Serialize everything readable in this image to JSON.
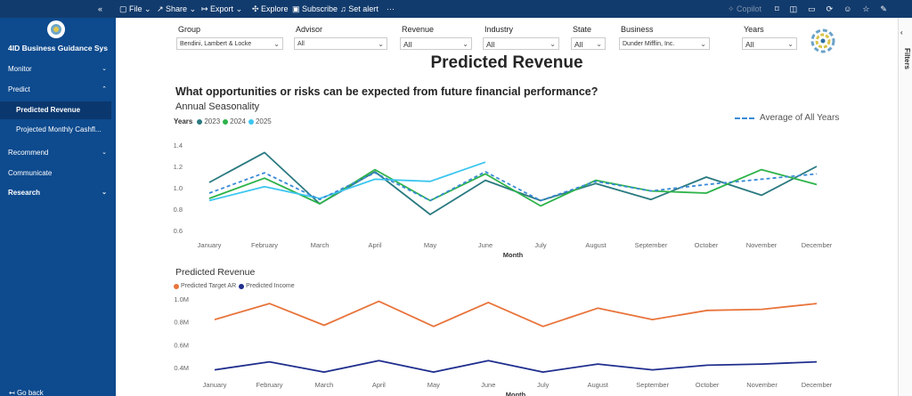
{
  "toolbar": {
    "items": [
      "File",
      "Share",
      "Export",
      "Explore",
      "Subscribe",
      "Set alert"
    ],
    "copilot": "Copilot"
  },
  "sidebar": {
    "app_name": "4ID Business Guidance Sys",
    "nav": [
      {
        "label": "Monitor"
      },
      {
        "label": "Predict"
      },
      {
        "label": "Predicted Revenue"
      },
      {
        "label": "Projected Monthly Cashfl..."
      },
      {
        "label": "Recommend"
      },
      {
        "label": "Communicate"
      },
      {
        "label": "Research"
      }
    ],
    "footer": "Go back"
  },
  "filters": [
    {
      "label": "Group",
      "value": "Bendini, Lambert & Locke"
    },
    {
      "label": "Advisor",
      "value": "All"
    },
    {
      "label": "Revenue",
      "value": "All"
    },
    {
      "label": "Industry",
      "value": "All"
    },
    {
      "label": "State",
      "value": "All"
    },
    {
      "label": "Business",
      "value": "Dunder Mifflin, Inc."
    },
    {
      "label": "Years",
      "value": "All"
    }
  ],
  "filters_pane": "Filters",
  "page": {
    "title": "Predicted Revenue",
    "question": "What opportunities or risks can be expected from future financial performance?"
  },
  "chart_data": [
    {
      "type": "line",
      "title": "Annual Seasonality",
      "legend_title": "Years",
      "x_label": "Month",
      "categories": [
        "January",
        "February",
        "March",
        "April",
        "May",
        "June",
        "July",
        "August",
        "September",
        "October",
        "November",
        "December"
      ],
      "series": [
        {
          "name": "2023",
          "color": "#2a7a80",
          "values": [
            1.05,
            1.33,
            0.85,
            1.15,
            0.75,
            1.07,
            0.88,
            1.04,
            0.89,
            1.1,
            0.93,
            1.2
          ]
        },
        {
          "name": "2024",
          "color": "#2db34a",
          "values": [
            0.9,
            1.09,
            0.85,
            1.17,
            0.88,
            1.13,
            0.83,
            1.07,
            0.97,
            0.95,
            1.17,
            1.03
          ]
        },
        {
          "name": "2025",
          "color": "#3cc6ef",
          "values": [
            0.88,
            1.01,
            0.9,
            1.08,
            1.06,
            1.24,
            null,
            null,
            null,
            null,
            null,
            null
          ]
        },
        {
          "name": "Average of All Years",
          "color": "#3a8ad6",
          "dashed": true,
          "values": [
            0.95,
            1.14,
            0.89,
            1.14,
            0.88,
            1.15,
            0.88,
            1.06,
            0.97,
            1.03,
            1.08,
            1.13
          ]
        }
      ],
      "ylim": [
        0.6,
        1.4
      ],
      "yticks": [
        0.6,
        0.8,
        {
          "value": 1,
          "label": "1.0"
        },
        1.2,
        1.4
      ],
      "grid": false
    },
    {
      "type": "line",
      "title": "Predicted Revenue",
      "x_label": "Month",
      "categories": [
        "January",
        "February",
        "March",
        "April",
        "May",
        "June",
        "July",
        "August",
        "September",
        "October",
        "November",
        "December"
      ],
      "series": [
        {
          "name": "Predicted Target AR",
          "color": "#e8743b",
          "values": [
            820000,
            960000,
            770000,
            980000,
            760000,
            970000,
            760000,
            920000,
            820000,
            900000,
            910000,
            960000
          ]
        },
        {
          "name": "Predicted Income",
          "color": "#1f2e8e",
          "values": [
            380000,
            450000,
            360000,
            460000,
            360000,
            460000,
            360000,
            430000,
            380000,
            420000,
            430000,
            450000
          ]
        }
      ],
      "ylim": [
        350000,
        1050000
      ],
      "yticks": [
        {
          "value": 400000,
          "label": "0.4M"
        },
        {
          "value": 600000,
          "label": "0.6M"
        },
        {
          "value": 800000,
          "label": "0.8M"
        },
        {
          "value": 1000000,
          "label": "1.0M"
        }
      ],
      "grid": false
    }
  ]
}
